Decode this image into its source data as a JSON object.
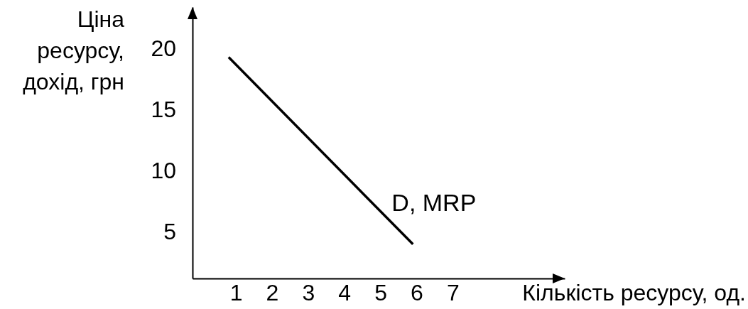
{
  "chart_data": {
    "type": "line",
    "xlabel": "Кількість ресурсу, од.",
    "ylabel": "Ціна ресурсу, дохід, грн",
    "x": [
      0.8,
      5.9
    ],
    "series": [
      {
        "name": "D, MRP",
        "color": "#000000",
        "values": [
          19.3,
          4.0
        ]
      }
    ],
    "xlim": [
      -0.2,
      10.1
    ],
    "xticks": [
      1,
      2,
      3,
      4,
      5,
      6,
      7
    ],
    "ylim": [
      1.2,
      23.4
    ],
    "yticks": [
      5,
      10,
      15,
      20
    ],
    "line_style": "solid"
  }
}
